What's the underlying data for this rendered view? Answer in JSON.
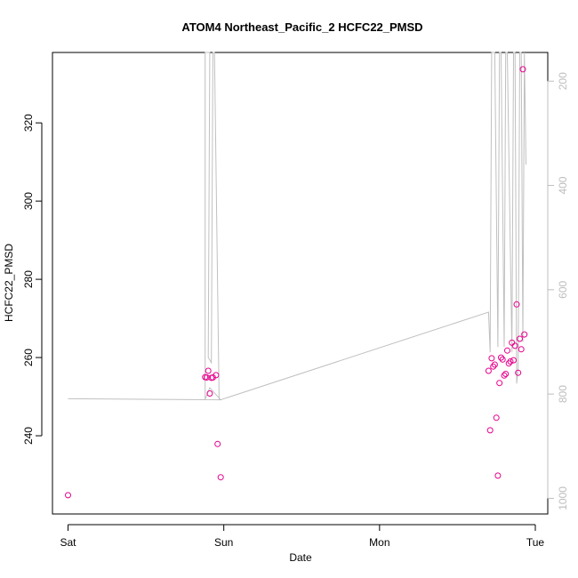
{
  "chart_data": {
    "type": "scatter",
    "title": "ATOM4 Northeast_Pacific_2 HCFC22_PMSD",
    "xlabel": "Date",
    "ylabel": "HCFC22_PMSD",
    "x_unit": "day",
    "xlim": [
      -0.1,
      3.08
    ],
    "ylim": [
      220,
      338
    ],
    "y2lim": [
      1030,
      145
    ],
    "x_ticks": [
      {
        "value": 0,
        "label": "Sat"
      },
      {
        "value": 1,
        "label": "Sun"
      },
      {
        "value": 2,
        "label": "Mon"
      },
      {
        "value": 3,
        "label": "Tue"
      }
    ],
    "y_ticks": [
      240,
      260,
      280,
      300,
      320
    ],
    "y2_ticks": [
      200,
      400,
      600,
      800,
      1000
    ],
    "colors": {
      "points": "#e6008c",
      "line": "#c0c0c0",
      "axis": "#000000",
      "y2_axis": "#bdbdbd"
    },
    "series": [
      {
        "kind": "points",
        "points": [
          [
            0.0,
            224.8
          ],
          [
            0.88,
            255.0
          ],
          [
            0.89,
            254.9
          ],
          [
            0.9,
            256.6
          ],
          [
            0.91,
            250.8
          ],
          [
            0.92,
            254.8
          ],
          [
            0.93,
            254.9
          ],
          [
            0.95,
            255.5
          ],
          [
            0.96,
            237.9
          ],
          [
            0.98,
            229.4
          ],
          [
            2.7,
            256.6
          ],
          [
            2.71,
            241.4
          ],
          [
            2.72,
            259.8
          ],
          [
            2.73,
            257.7
          ],
          [
            2.74,
            258.2
          ],
          [
            2.75,
            244.6
          ],
          [
            2.76,
            229.8
          ],
          [
            2.77,
            253.5
          ],
          [
            2.78,
            260.0
          ],
          [
            2.79,
            259.5
          ],
          [
            2.8,
            255.4
          ],
          [
            2.81,
            255.8
          ],
          [
            2.82,
            261.8
          ],
          [
            2.83,
            258.5
          ],
          [
            2.84,
            259.0
          ],
          [
            2.85,
            263.8
          ],
          [
            2.86,
            259.3
          ],
          [
            2.87,
            263.0
          ],
          [
            2.88,
            273.6
          ],
          [
            2.89,
            256.1
          ],
          [
            2.9,
            264.8
          ],
          [
            2.91,
            262.1
          ],
          [
            2.92,
            333.7
          ],
          [
            2.93,
            265.9
          ]
        ]
      },
      {
        "kind": "line",
        "axis": "y2",
        "points": [
          [
            0.0,
            809
          ],
          [
            0.98,
            811
          ],
          [
            0.91,
            788
          ],
          [
            0.88,
            810
          ],
          [
            0.88,
            720
          ],
          [
            0.88,
            140
          ],
          [
            0.91,
            140
          ],
          [
            0.9,
            730
          ],
          [
            0.92,
            740
          ],
          [
            0.93,
            140
          ],
          [
            0.94,
            140
          ],
          [
            0.97,
            810
          ],
          [
            0.98,
            811
          ],
          [
            2.7,
            643
          ],
          [
            2.71,
            720
          ],
          [
            2.72,
            140
          ],
          [
            2.74,
            140
          ],
          [
            2.76,
            710
          ],
          [
            2.77,
            140
          ],
          [
            2.78,
            140
          ],
          [
            2.8,
            710
          ],
          [
            2.81,
            140
          ],
          [
            2.82,
            140
          ],
          [
            2.85,
            720
          ],
          [
            2.86,
            140
          ],
          [
            2.87,
            140
          ],
          [
            2.88,
            780
          ],
          [
            2.89,
            750
          ],
          [
            2.9,
            140
          ],
          [
            2.91,
            140
          ],
          [
            2.92,
            700
          ],
          [
            2.93,
            140
          ],
          [
            2.94,
            360
          ]
        ]
      }
    ]
  }
}
